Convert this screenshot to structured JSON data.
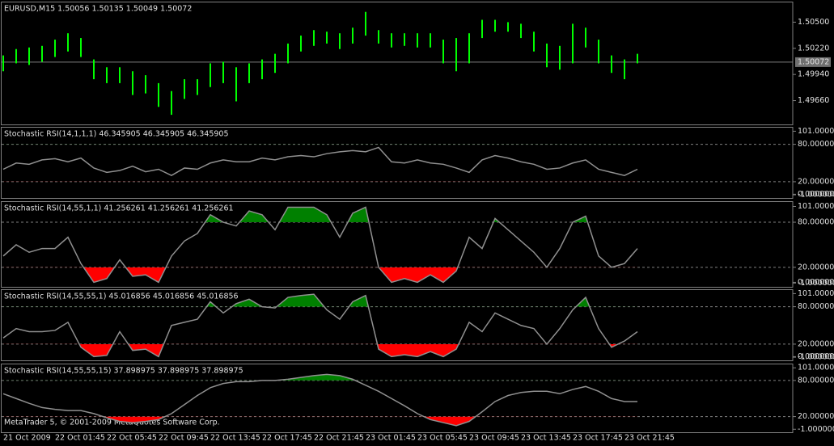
{
  "chart_data": [
    {
      "type": "ohlc",
      "title": "EURUSD,M15  1.50056 1.50135 1.50049 1.50072",
      "color": "#00ff00",
      "categories": [
        "21 Oct 2009",
        null,
        null,
        null,
        "22 Oct 01:45",
        null,
        null,
        null,
        "22 Oct 05:45",
        null,
        null,
        null,
        "22 Oct 09:45",
        null,
        null,
        null,
        "22 Oct 13:45",
        null,
        null,
        null,
        "22 Oct 17:45",
        null,
        null,
        null,
        "22 Oct 21:45",
        null,
        null,
        null,
        "23 Oct 01:45",
        null,
        null,
        null,
        "23 Oct 05:45",
        null,
        null,
        null,
        "23 Oct 09:45",
        null,
        null,
        null,
        "23 Oct 13:45",
        null,
        null,
        null,
        "23 Oct 17:45",
        null,
        null,
        null,
        "23 Oct 21:45",
        null
      ],
      "high": [
        1.50144,
        1.50212,
        1.50229,
        1.50246,
        1.50313,
        1.50381,
        1.5033,
        1.50101,
        1.50017,
        1.50017,
        1.49974,
        1.49932,
        1.49847,
        1.49762,
        1.49889,
        1.49889,
        1.50059,
        1.50076,
        1.50017,
        1.50059,
        1.50101,
        1.50161,
        1.50271,
        1.50356,
        1.50415,
        1.50398,
        1.50381,
        1.50441,
        1.5061,
        1.50415,
        1.50381,
        1.50381,
        1.50381,
        1.50381,
        1.50313,
        1.5033,
        1.50381,
        1.50525,
        1.50525,
        1.505,
        1.50483,
        1.50398,
        1.50271,
        1.50246,
        1.50483,
        1.50441,
        1.50313,
        1.50144,
        1.50101,
        1.50161
      ],
      "low": [
        1.49974,
        1.50059,
        1.50042,
        1.50076,
        1.50127,
        1.50186,
        1.50127,
        1.49889,
        1.49847,
        1.49847,
        1.4972,
        1.49737,
        1.49593,
        1.49508,
        1.49678,
        1.4972,
        1.49805,
        1.49847,
        1.49652,
        1.49847,
        1.49889,
        1.49957,
        1.50059,
        1.50186,
        1.50246,
        1.50271,
        1.50212,
        1.50271,
        1.50356,
        1.50271,
        1.50229,
        1.50246,
        1.50229,
        1.50229,
        1.50059,
        1.49974,
        1.50059,
        1.5033,
        1.50398,
        1.50398,
        1.5033,
        1.50186,
        1.50017,
        1.49991,
        1.50059,
        1.50229,
        1.50059,
        1.49957,
        1.49889,
        1.50059
      ],
      "ylim": [
        1.49405,
        1.5072
      ],
      "yticks": [
        {
          "value": 1.505,
          "label": "1.50500"
        },
        {
          "value": 1.5022,
          "label": "1.50220"
        },
        {
          "value": 1.4994,
          "label": "1.49940"
        },
        {
          "value": 1.4966,
          "label": "1.49660"
        }
      ],
      "last_price": {
        "value": 1.50072,
        "label": "1.50072"
      }
    },
    {
      "type": "line",
      "title": "Stochastic RSI(14,1,1,1) 46.345905 46.345905 46.345905",
      "color": "#909090",
      "values": [
        40,
        50,
        48,
        55,
        57,
        52,
        58,
        42,
        35,
        38,
        45,
        36,
        40,
        30,
        42,
        40,
        50,
        55,
        52,
        52,
        58,
        55,
        60,
        62,
        60,
        65,
        68,
        70,
        68,
        75,
        52,
        50,
        55,
        50,
        48,
        42,
        35,
        55,
        62,
        58,
        52,
        48,
        40,
        42,
        50,
        55,
        40,
        35,
        30,
        40
      ],
      "ylim": [
        -6,
        108
      ],
      "levels": [
        80,
        20
      ],
      "level_colors": [
        "#008000",
        "#ff0000"
      ],
      "yticks": [
        {
          "value": 101,
          "label": "101.000000"
        },
        {
          "value": 80,
          "label": "80.000000"
        },
        {
          "value": 20,
          "label": "20.000000"
        },
        {
          "value": 0,
          "label": "0.000000"
        },
        {
          "value": -1,
          "label": "-1.000000"
        }
      ]
    },
    {
      "type": "line",
      "title": "Stochastic RSI(14,55,1,1) 41.256261 41.256261 41.256261",
      "color": "#909090",
      "values": [
        35,
        50,
        40,
        45,
        45,
        60,
        25,
        0,
        5,
        30,
        8,
        10,
        0,
        35,
        55,
        65,
        90,
        80,
        75,
        95,
        90,
        70,
        100,
        100,
        100,
        90,
        60,
        92,
        100,
        20,
        0,
        5,
        0,
        10,
        0,
        15,
        60,
        45,
        85,
        70,
        55,
        40,
        20,
        45,
        80,
        88,
        35,
        20,
        25,
        45
      ],
      "ylim": [
        -6,
        108
      ],
      "levels": [
        80,
        20
      ],
      "level_colors": [
        "#008000",
        "#ff0000"
      ],
      "yticks": [
        {
          "value": 101,
          "label": "101.000000"
        },
        {
          "value": 80,
          "label": "80.000000"
        },
        {
          "value": 20,
          "label": "20.000000"
        },
        {
          "value": 0,
          "label": "0.000000"
        },
        {
          "value": -1,
          "label": "-1.000000"
        }
      ]
    },
    {
      "type": "line",
      "title": "Stochastic RSI(14,55,55,1) 45.016856 45.016856 45.016856",
      "color": "#909090",
      "values": [
        30,
        45,
        40,
        40,
        42,
        55,
        15,
        0,
        2,
        40,
        10,
        12,
        0,
        50,
        55,
        60,
        88,
        70,
        85,
        92,
        80,
        78,
        95,
        98,
        100,
        75,
        60,
        88,
        98,
        12,
        0,
        3,
        0,
        8,
        0,
        12,
        55,
        40,
        70,
        60,
        50,
        45,
        20,
        45,
        75,
        95,
        45,
        15,
        25,
        40
      ],
      "ylim": [
        -6,
        108
      ],
      "levels": [
        80,
        20
      ],
      "level_colors": [
        "#008000",
        "#ff0000"
      ],
      "yticks": [
        {
          "value": 101,
          "label": "101.000000"
        },
        {
          "value": 80,
          "label": "80.000000"
        },
        {
          "value": 20,
          "label": "20.000000"
        },
        {
          "value": 0,
          "label": "0.000000"
        },
        {
          "value": -1,
          "label": "-1.000000"
        }
      ]
    },
    {
      "type": "line",
      "title": "Stochastic RSI(14,55,55,15) 37.898975 37.898975 37.898975",
      "color": "#909090",
      "values": [
        58,
        50,
        42,
        35,
        32,
        30,
        30,
        25,
        18,
        12,
        10,
        12,
        15,
        25,
        40,
        55,
        68,
        75,
        78,
        78,
        80,
        80,
        82,
        85,
        88,
        90,
        88,
        82,
        72,
        62,
        50,
        38,
        25,
        15,
        10,
        5,
        12,
        28,
        45,
        55,
        60,
        62,
        62,
        58,
        65,
        70,
        62,
        50,
        45,
        45
      ],
      "ylim": [
        -6,
        108
      ],
      "levels": [
        80,
        20
      ],
      "level_colors": [
        "#008000",
        "#ff0000"
      ],
      "yticks": [
        {
          "value": 101,
          "label": "101.000000"
        },
        {
          "value": 80,
          "label": "80.000000"
        },
        {
          "value": 20,
          "label": "20.000000"
        },
        {
          "value": -1,
          "label": "-1.000000"
        }
      ]
    }
  ],
  "footer": "MetaTrader 5, © 2001-2009 MetaQuotes Software Corp."
}
